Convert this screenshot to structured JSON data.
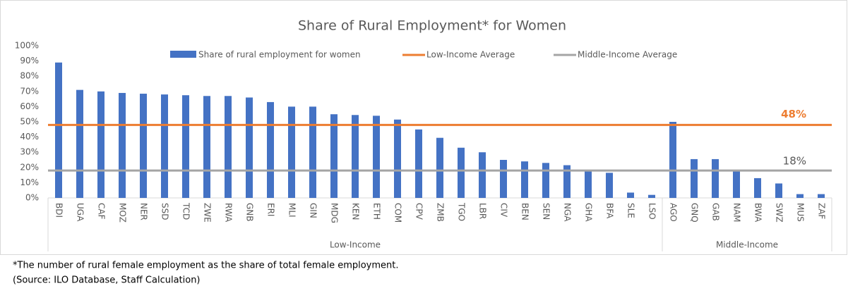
{
  "chart_data": {
    "type": "bar",
    "title": "Share of Rural Employment* for Women",
    "categories": [
      "BDI",
      "UGA",
      "CAF",
      "MOZ",
      "NER",
      "SSD",
      "TCD",
      "ZWE",
      "RWA",
      "GNB",
      "ERI",
      "MLI",
      "GIN",
      "MDG",
      "KEN",
      "ETH",
      "COM",
      "CPV",
      "ZMB",
      "TGO",
      "LBR",
      "CIV",
      "BEN",
      "SEN",
      "NGA",
      "GHA",
      "BFA",
      "SLE",
      "LSO",
      "AGO",
      "GNQ",
      "GAB",
      "NAM",
      "BWA",
      "SWZ",
      "MUS",
      "ZAF"
    ],
    "category_groups": [
      "Low-Income",
      "Low-Income",
      "Low-Income",
      "Low-Income",
      "Low-Income",
      "Low-Income",
      "Low-Income",
      "Low-Income",
      "Low-Income",
      "Low-Income",
      "Low-Income",
      "Low-Income",
      "Low-Income",
      "Low-Income",
      "Low-Income",
      "Low-Income",
      "Low-Income",
      "Low-Income",
      "Low-Income",
      "Low-Income",
      "Low-Income",
      "Low-Income",
      "Low-Income",
      "Low-Income",
      "Low-Income",
      "Low-Income",
      "Low-Income",
      "Low-Income",
      "Low-Income",
      "Middle-Income",
      "Middle-Income",
      "Middle-Income",
      "Middle-Income",
      "Middle-Income",
      "Middle-Income",
      "Middle-Income",
      "Middle-Income"
    ],
    "series": [
      {
        "name": "Share of rural employment for women",
        "color": "#4472c4",
        "values": [
          89,
          71,
          70,
          69,
          68.5,
          68,
          67.5,
          67,
          67,
          66,
          63,
          60,
          60,
          55,
          54.5,
          54,
          51.5,
          45,
          39.5,
          33,
          30,
          25,
          24,
          23,
          21.5,
          18,
          16.5,
          3.5,
          2,
          50,
          25.5,
          25.5,
          18,
          13,
          9.5,
          2.5,
          2.5
        ]
      }
    ],
    "reference_lines": [
      {
        "name": "Low-Income Average",
        "color": "#ed7d31",
        "value": 48,
        "value_label": "48%"
      },
      {
        "name": "Middle-Income Average",
        "color": "#a5a5a5",
        "value": 18,
        "value_label": "18%"
      }
    ],
    "ylim": [
      0,
      100
    ],
    "yticks": [
      {
        "value": 0,
        "label": "0%"
      },
      {
        "value": 10,
        "label": "10%"
      },
      {
        "value": 20,
        "label": "20%"
      },
      {
        "value": 30,
        "label": "30%"
      },
      {
        "value": 40,
        "label": "40%"
      },
      {
        "value": 50,
        "label": "50%"
      },
      {
        "value": 60,
        "label": "60%"
      },
      {
        "value": 70,
        "label": "70%"
      },
      {
        "value": 80,
        "label": "80%"
      },
      {
        "value": 90,
        "label": "90%"
      },
      {
        "value": 100,
        "label": "100%"
      }
    ],
    "grid": false,
    "notes": [
      "*The number of rural female employment as the share of total female employment.",
      "(Source: ILO Database, Staff Calculation)"
    ]
  }
}
